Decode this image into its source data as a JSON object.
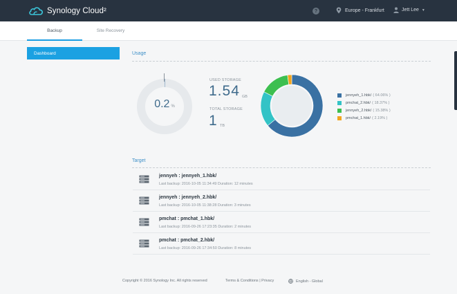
{
  "header": {
    "brand": "Synology Cloud²",
    "help_icon": "question-icon",
    "help_glyph": "?",
    "region": "Europe - Frankfurt",
    "user": "Jett Lee"
  },
  "tabs": [
    {
      "label": "Backup",
      "active": true
    },
    {
      "label": "Site Recovery",
      "active": false
    }
  ],
  "sidebar": {
    "items": [
      {
        "label": "Dashboard",
        "active": true
      }
    ]
  },
  "usage": {
    "title": "Usage",
    "percent": "0.2",
    "percent_unit": "%",
    "percent_value": 0.2,
    "used_label": "USED STORAGE",
    "used_value": "1.54",
    "used_unit": "GB",
    "total_label": "TOTAL STORAGE",
    "total_value": "1",
    "total_unit": "TB",
    "legend": [
      {
        "name": "jennyeh_1.hbk/",
        "pct": "( 64.06% )",
        "value": 64.06,
        "color": "#3a71a3"
      },
      {
        "name": "pmchat_2.hbk/",
        "pct": "( 18.37% )",
        "value": 18.37,
        "color": "#33c3c6"
      },
      {
        "name": "jennyeh_2.hbk/",
        "pct": "( 15.38% )",
        "value": 15.38,
        "color": "#3dbf50"
      },
      {
        "name": "pmchat_1.hbk/",
        "pct": "( 2.19% )",
        "value": 2.19,
        "color": "#f2a51f"
      }
    ]
  },
  "target": {
    "title": "Target",
    "rows": [
      {
        "name": "jennyeh : jennyeh_1.hbk/",
        "meta": "Last backup: 2016-10-05 11:34:49 Duration: 12 minutes"
      },
      {
        "name": "jennyeh : jennyeh_2.hbk/",
        "meta": "Last backup: 2016-10-05 11:38:28 Duration: 3 minutes"
      },
      {
        "name": "pmchat : pmchat_1.hbk/",
        "meta": "Last backup: 2016-09-26 17:23:35 Duration: 2 minutes"
      },
      {
        "name": "pmchat : pmchat_2.hbk/",
        "meta": "Last backup: 2016-09-26 17:34:50 Duration: 8 minutes"
      }
    ]
  },
  "footer": {
    "copyright": "Copyright © 2016 Synology Inc. All rights reserved",
    "links": "Terms & Conditions  |  Privacy",
    "language": "English - Global"
  },
  "colors": {
    "header_bg": "#283340",
    "accent": "#1ba1e2",
    "value_text": "#3f6b8c"
  }
}
